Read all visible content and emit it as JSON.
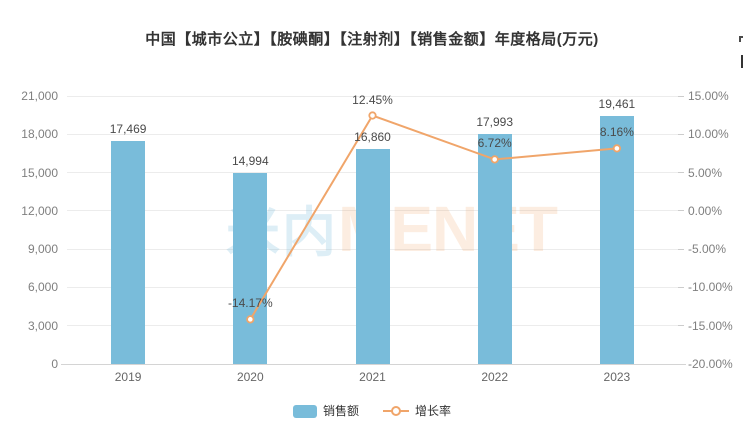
{
  "title": "中国【城市公立】【胺碘酮】【注射剂】【销售金额】年度格局(万元)",
  "watermark": {
    "cn": "米内",
    "en": "MENET"
  },
  "legend": {
    "items": [
      {
        "label": "销售额",
        "type": "bar"
      },
      {
        "label": "增长率",
        "type": "line"
      }
    ]
  },
  "colors": {
    "bar": "#79bcda",
    "line": "#f0a56a",
    "marker_fill": "#ffffff",
    "title_text": "#333333",
    "data_label": "#4a4a4a",
    "axis_label": "#7f7f7f",
    "x_label": "#666666",
    "gridline": "#ececec",
    "axis_line": "#d4d4d4",
    "watermark_cn": "rgba(121,188,218,0.25)",
    "watermark_en": "rgba(240,165,106,0.20)"
  },
  "chart_data": {
    "type": "bar+line combo",
    "title": "中国【城市公立】【胺碘酮】【注射剂】【销售金额】年度格局(万元)",
    "categories": [
      "2019",
      "2020",
      "2021",
      "2022",
      "2023"
    ],
    "series": [
      {
        "name": "销售额",
        "type": "bar",
        "axis": "left",
        "values": [
          17469,
          14994,
          16860,
          17993,
          19461
        ],
        "labels": [
          "17,469",
          "14,994",
          "16,860",
          "17,993",
          "19,461"
        ],
        "color": "#79bcda"
      },
      {
        "name": "增长率",
        "type": "line",
        "axis": "right",
        "values": [
          null,
          -14.17,
          12.45,
          6.72,
          8.16
        ],
        "labels": [
          null,
          "-14.17%",
          "12.45%",
          "6.72%",
          "8.16%"
        ],
        "color": "#f0a56a"
      }
    ],
    "left_axis": {
      "min": 0,
      "max": 21000,
      "step": 3000,
      "tick_labels": [
        "0",
        "3,000",
        "6,000",
        "9,000",
        "12,000",
        "15,000",
        "18,000",
        "21,000"
      ]
    },
    "right_axis": {
      "min": -20,
      "max": 15,
      "step": 5,
      "tick_labels": [
        "-20.00%",
        "-15.00%",
        "-10.00%",
        "-5.00%",
        "0.00%",
        "5.00%",
        "10.00%",
        "15.00%"
      ]
    },
    "grid": true,
    "legend_position": "bottom"
  }
}
